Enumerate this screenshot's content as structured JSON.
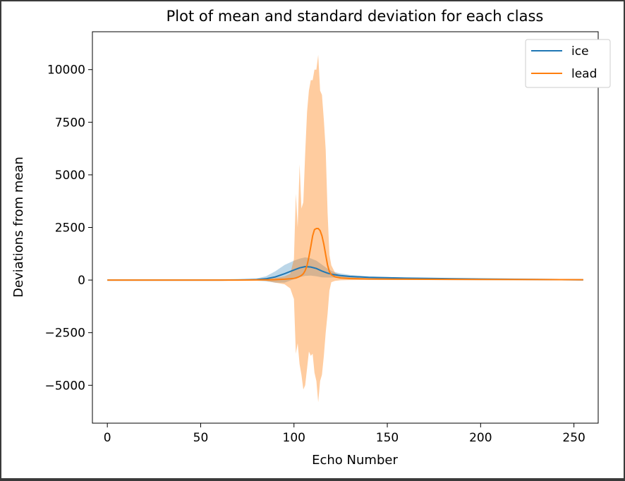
{
  "chart_data": {
    "type": "line",
    "title": "Plot of mean and standard deviation for each class",
    "xlabel": "Echo Number",
    "ylabel": "Deviations from mean",
    "xlim": [
      -8,
      263
    ],
    "ylim": [
      -6800,
      11800
    ],
    "xticks": [
      0,
      50,
      100,
      150,
      200,
      250
    ],
    "yticks": [
      -5000,
      -2500,
      0,
      2500,
      5000,
      7500,
      10000
    ],
    "ytick_labels": [
      "−5000",
      "−2500",
      "0",
      "2500",
      "5000",
      "7500",
      "10000"
    ],
    "grid": false,
    "legend_position": "upper-right",
    "series": [
      {
        "name": "ice",
        "color": "#1f77b4",
        "band_alpha": 0.3,
        "x": [
          0,
          60,
          70,
          80,
          85,
          90,
          95,
          100,
          103,
          106,
          109,
          112,
          115,
          118,
          121,
          125,
          130,
          140,
          160,
          200,
          255
        ],
        "mean": [
          0,
          0,
          5,
          25,
          60,
          150,
          300,
          480,
          580,
          640,
          620,
          550,
          430,
          330,
          260,
          210,
          170,
          130,
          90,
          50,
          10
        ],
        "upper": [
          0,
          0,
          15,
          80,
          180,
          420,
          720,
          920,
          1020,
          1080,
          1030,
          920,
          730,
          540,
          400,
          310,
          245,
          175,
          115,
          62,
          15
        ],
        "lower": [
          0,
          0,
          -5,
          -30,
          -60,
          -120,
          -120,
          40,
          140,
          200,
          210,
          180,
          130,
          120,
          120,
          110,
          95,
          85,
          65,
          38,
          5
        ]
      },
      {
        "name": "lead",
        "color": "#ff7f0e",
        "band_alpha": 0.4,
        "x": [
          0,
          60,
          70,
          80,
          85,
          90,
          95,
          98,
          100,
          101,
          102,
          103,
          104,
          105,
          106,
          107,
          108,
          109,
          110,
          111,
          112,
          113,
          114,
          115,
          116,
          117,
          118,
          119,
          120,
          122,
          125,
          130,
          140,
          160,
          200,
          255
        ],
        "mean": [
          0,
          0,
          0,
          5,
          10,
          20,
          40,
          60,
          80,
          100,
          130,
          170,
          220,
          300,
          450,
          700,
          1100,
          1600,
          2100,
          2400,
          2450,
          2450,
          2350,
          2100,
          1700,
          1200,
          700,
          400,
          250,
          150,
          100,
          70,
          50,
          40,
          30,
          15
        ],
        "upper": [
          0,
          0,
          0,
          20,
          50,
          100,
          180,
          300,
          1000,
          4100,
          2500,
          5500,
          3400,
          3700,
          6000,
          8000,
          9000,
          9500,
          9500,
          10000,
          10000,
          10700,
          9000,
          8800,
          7600,
          6200,
          3200,
          1200,
          700,
          350,
          210,
          140,
          90,
          70,
          45,
          25
        ],
        "lower": [
          0,
          0,
          0,
          -10,
          -40,
          -120,
          -200,
          -400,
          -900,
          -3500,
          -3000,
          -4000,
          -4500,
          -5200,
          -5000,
          -4200,
          -3400,
          -3600,
          -3500,
          -4400,
          -4800,
          -5800,
          -4800,
          -4500,
          -3600,
          -2500,
          -1600,
          -500,
          -100,
          -40,
          -10,
          0,
          10,
          10,
          15,
          5
        ]
      }
    ]
  }
}
